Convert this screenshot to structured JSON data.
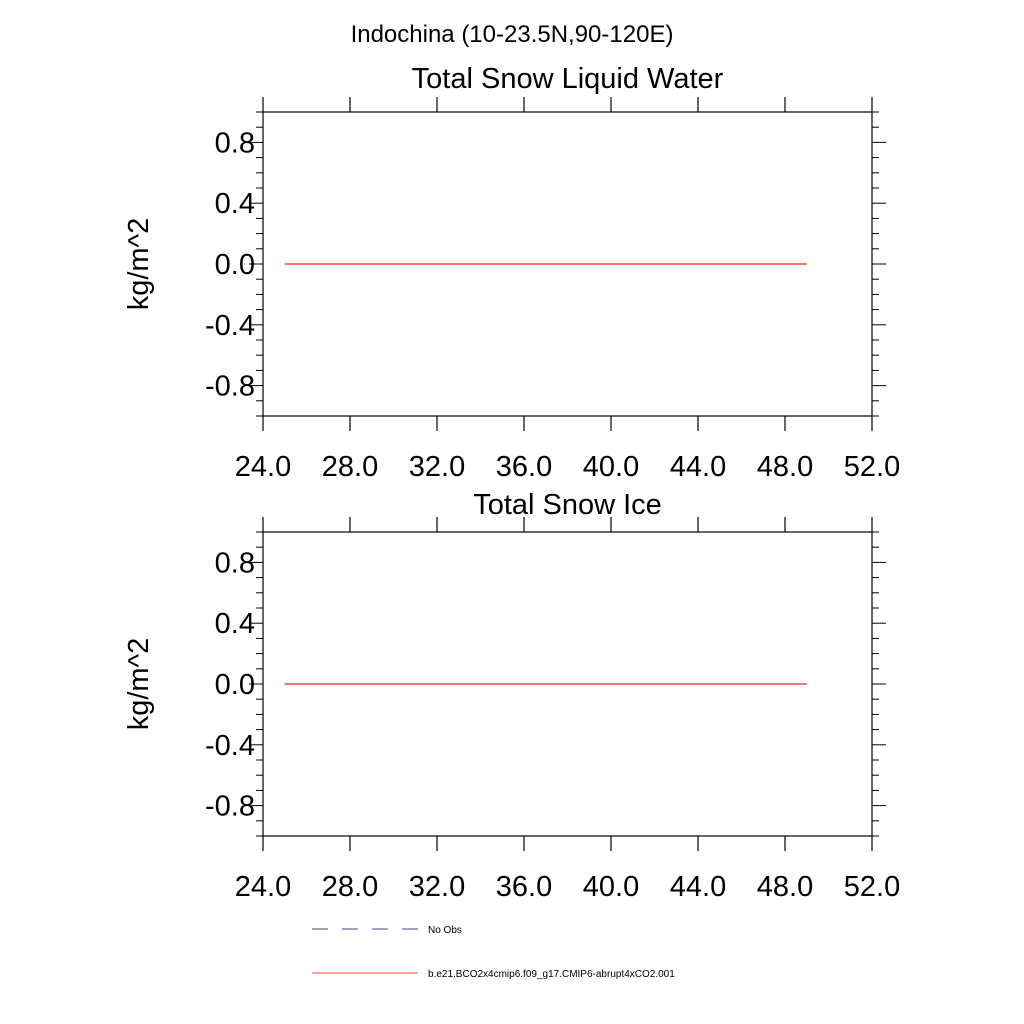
{
  "figure": {
    "title": "Indochina (10-23.5N,90-120E)"
  },
  "legend": {
    "items": [
      {
        "label": "No Obs",
        "color": "#3b4a8c",
        "dash": "dashed"
      },
      {
        "label": "b.e21.BCO2x4cmip6.f09_g17.CMIP6-abrupt4xCO2.001",
        "color": "#e8473f",
        "dash": "solid"
      }
    ]
  },
  "chart_data": [
    {
      "type": "line",
      "title": "Total Snow Liquid Water",
      "ylabel": "kg/m^2",
      "xlim": [
        24.0,
        52.0
      ],
      "ylim": [
        -1.0,
        1.0
      ],
      "x_ticks": [
        "24.0",
        "28.0",
        "32.0",
        "36.0",
        "40.0",
        "44.0",
        "48.0",
        "52.0"
      ],
      "y_ticks": [
        "0.8",
        "0.4",
        "0.0",
        "-0.4",
        "-0.8"
      ],
      "series": [
        {
          "name": "b.e21.BCO2x4cmip6.f09_g17.CMIP6-abrupt4xCO2.001",
          "color": "#e8473f",
          "x": [
            25,
            49
          ],
          "y": [
            0.0,
            0.0
          ]
        }
      ]
    },
    {
      "type": "line",
      "title": "Total Snow Ice",
      "ylabel": "kg/m^2",
      "xlim": [
        24.0,
        52.0
      ],
      "ylim": [
        -1.0,
        1.0
      ],
      "x_ticks": [
        "24.0",
        "28.0",
        "32.0",
        "36.0",
        "40.0",
        "44.0",
        "48.0",
        "52.0"
      ],
      "y_ticks": [
        "0.8",
        "0.4",
        "0.0",
        "-0.4",
        "-0.8"
      ],
      "series": [
        {
          "name": "b.e21.BCO2x4cmip6.f09_g17.CMIP6-abrupt4xCO2.001",
          "color": "#e8473f",
          "x": [
            25,
            49
          ],
          "y": [
            0.0,
            0.0
          ]
        }
      ]
    }
  ]
}
